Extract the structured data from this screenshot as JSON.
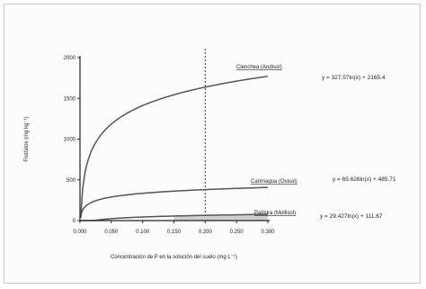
{
  "chart_data": {
    "type": "line",
    "title": "",
    "xlabel": "Concentración de P en la solución del suelo (mg L⁻¹)",
    "ylabel": "Fosfatos (mg kg⁻¹)",
    "xlim": [
      0.0,
      0.3
    ],
    "ylim": [
      0,
      2000
    ],
    "x_ticks": [
      "0.000",
      "0.050",
      "0.100",
      "0.150",
      "0.200",
      "0.250",
      "0.300"
    ],
    "y_ticks": [
      "0",
      "500",
      "1000",
      "1500",
      "2000"
    ],
    "reference_line": {
      "x": 0.2,
      "style": "dashed"
    },
    "series": [
      {
        "name": "Clenchea (Andisol)",
        "equation": "y = 327.57ln(x) + 2165.4",
        "a": 327.57,
        "b": 2165.4,
        "color": "#555555"
      },
      {
        "name": "Carimagua (Oxisol)",
        "equation": "y = 65.626ln(x) + 485.71",
        "a": 65.626,
        "b": 485.71,
        "color": "#555555"
      },
      {
        "name": "Palmira (Mollisol)",
        "equation": "y = 29.427ln(x) + 111.67",
        "a": 29.427,
        "b": 111.67,
        "color": "#555555"
      }
    ]
  }
}
